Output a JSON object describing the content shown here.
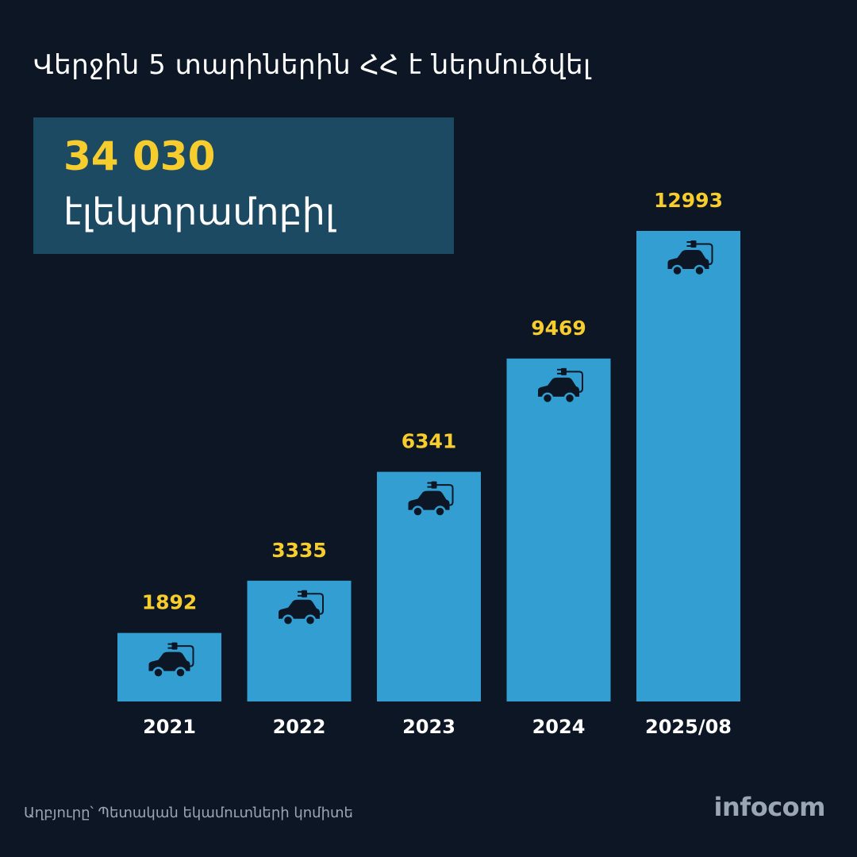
{
  "title": "Վերջին 5 տարիներին ՀՀ է ներմուծվել",
  "highlight": {
    "number": "34 030",
    "label": "էլեկտրամոբիլ"
  },
  "source": "Աղբյուրը՝ Պետական եկամուտների կոմիտե",
  "logo": "infocom",
  "colors": {
    "background": "#0c1624",
    "bar": "#339ed1",
    "value_label": "#f7cd2e",
    "highlight_box": "#1c4a63",
    "icon": "#0c1624"
  },
  "bar_icon": "ev-charging-car-icon",
  "chart_data": {
    "type": "bar",
    "categories": [
      "2021",
      "2022",
      "2023",
      "2024",
      "2025/08"
    ],
    "values": [
      1892,
      3335,
      6341,
      9469,
      12993
    ],
    "data_labels": [
      "1892",
      "3335",
      "6341",
      "9469",
      "12993"
    ],
    "title": "",
    "xlabel": "",
    "ylabel": "",
    "ylim": [
      0,
      12993
    ],
    "grid": false,
    "legend": "none"
  }
}
